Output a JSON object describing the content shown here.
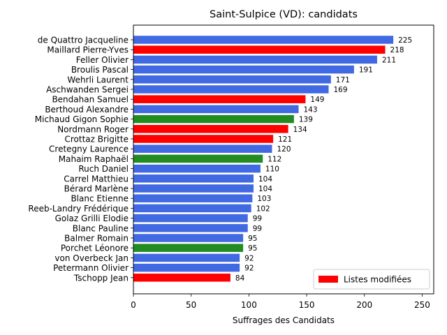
{
  "chart_data": {
    "type": "bar",
    "orientation": "horizontal",
    "title": "Saint-Sulpice (VD): candidats",
    "xlabel": "Suffrages des Candidats",
    "ylabel": "",
    "xlim": [
      0,
      260
    ],
    "xticks": [
      0,
      50,
      100,
      150,
      200,
      250
    ],
    "grid": false,
    "legend": {
      "placement": "lower-right",
      "entries": [
        {
          "label": "Listes modifiées",
          "color": "#ff0000"
        }
      ]
    },
    "colors": {
      "blue": "#4169e1",
      "red": "#ff0000",
      "green": "#228b22"
    },
    "categories": [
      "de Quattro Jacqueline",
      "Maillard Pierre-Yves",
      "Feller Olivier",
      "Broulis Pascal",
      "Wehrli Laurent",
      "Aschwanden Sergei",
      "Bendahan Samuel",
      "Berthoud Alexandre",
      "Michaud Gigon Sophie",
      "Nordmann Roger",
      "Crottaz Brigitte",
      "Cretegny Laurence",
      "Mahaim Raphaël",
      "Ruch Daniel",
      "Carrel Matthieu",
      "Bérard Marlène",
      "Blanc Etienne",
      "Reeb-Landry Frédérique",
      "Golaz Grilli Elodie",
      "Blanc Pauline",
      "Balmer Romain",
      "Porchet Léonore",
      "von Overbeck Jan",
      "Petermann Olivier",
      "Tschopp Jean"
    ],
    "values": [
      225,
      218,
      211,
      191,
      171,
      169,
      149,
      143,
      139,
      134,
      121,
      120,
      112,
      110,
      104,
      104,
      103,
      102,
      99,
      99,
      95,
      95,
      92,
      92,
      84
    ],
    "bar_colors": [
      "#4169e1",
      "#ff0000",
      "#4169e1",
      "#4169e1",
      "#4169e1",
      "#4169e1",
      "#ff0000",
      "#4169e1",
      "#228b22",
      "#ff0000",
      "#ff0000",
      "#4169e1",
      "#228b22",
      "#4169e1",
      "#4169e1",
      "#4169e1",
      "#4169e1",
      "#4169e1",
      "#4169e1",
      "#4169e1",
      "#4169e1",
      "#228b22",
      "#4169e1",
      "#4169e1",
      "#ff0000"
    ]
  }
}
